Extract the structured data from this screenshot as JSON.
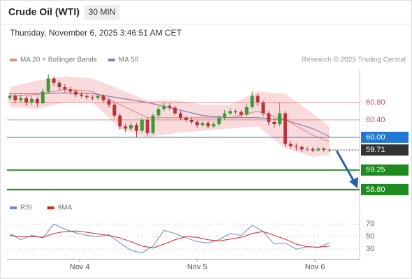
{
  "chart_data": [
    {
      "type": "candlestick",
      "title": "Crude Oil (WTI)",
      "timeframe": "30 MIN",
      "subtitle": "Thursday, November 6, 2025 3:46:51 AM CET",
      "source": "Research © 2025 Trading Central",
      "up_color": "#3a9a3a",
      "down_color": "#b8333a",
      "open": [
        60.9,
        60.95,
        60.85,
        60.9,
        60.8,
        60.88,
        60.78,
        61.05,
        61.35,
        61.25,
        61.15,
        61.1,
        61.05,
        60.98,
        60.95,
        60.92,
        60.9,
        60.95,
        60.85,
        60.75,
        60.5,
        60.25,
        60.2,
        60.28,
        60.15,
        60.4,
        60.1,
        60.5,
        60.65,
        60.72,
        60.68,
        60.55,
        60.45,
        60.4,
        60.35,
        60.28,
        60.33,
        60.25,
        60.3,
        60.45,
        60.55,
        60.6,
        60.58,
        60.52,
        60.7,
        60.95,
        60.8,
        60.55,
        60.35,
        60.3,
        60.55,
        59.85,
        59.8,
        59.78,
        59.72,
        59.73,
        59.7,
        59.74,
        59.71
      ],
      "high": [
        61.02,
        61.0,
        60.98,
        60.95,
        60.94,
        60.92,
        61.12,
        61.45,
        61.4,
        61.3,
        61.22,
        61.16,
        61.1,
        61.04,
        61.0,
        60.97,
        61.0,
        60.99,
        60.9,
        60.8,
        60.55,
        60.32,
        60.35,
        60.33,
        60.45,
        60.44,
        60.55,
        60.72,
        60.8,
        60.78,
        60.72,
        60.6,
        60.5,
        60.45,
        60.4,
        60.38,
        60.37,
        60.36,
        60.5,
        60.62,
        60.68,
        60.65,
        60.62,
        60.76,
        61.05,
        61.0,
        60.85,
        60.6,
        60.42,
        60.8,
        60.6,
        59.92,
        59.86,
        59.82,
        59.78,
        59.77,
        59.78,
        59.77,
        59.75
      ],
      "low": [
        60.84,
        60.78,
        60.8,
        60.72,
        60.74,
        60.7,
        60.75,
        61.0,
        61.18,
        61.08,
        61.04,
        60.98,
        60.92,
        60.9,
        60.87,
        60.85,
        60.86,
        60.8,
        60.68,
        60.45,
        60.18,
        60.12,
        60.15,
        60.0,
        60.1,
        60.04,
        60.06,
        60.45,
        60.6,
        60.62,
        60.5,
        60.4,
        60.35,
        60.3,
        60.22,
        60.24,
        60.2,
        60.21,
        60.26,
        60.4,
        60.5,
        60.52,
        60.46,
        60.48,
        60.66,
        60.72,
        60.48,
        60.28,
        60.22,
        60.25,
        59.78,
        59.74,
        59.7,
        59.66,
        59.67,
        59.66,
        59.67,
        59.66,
        59.67
      ],
      "close": [
        60.95,
        60.85,
        60.9,
        60.8,
        60.88,
        60.78,
        61.05,
        61.35,
        61.25,
        61.15,
        61.1,
        61.05,
        60.98,
        60.95,
        60.92,
        60.9,
        60.95,
        60.85,
        60.75,
        60.5,
        60.25,
        60.2,
        60.28,
        60.15,
        60.4,
        60.1,
        60.5,
        60.65,
        60.72,
        60.68,
        60.55,
        60.45,
        60.4,
        60.35,
        60.28,
        60.33,
        60.25,
        60.3,
        60.45,
        60.55,
        60.6,
        60.58,
        60.52,
        60.7,
        60.95,
        60.8,
        60.55,
        60.35,
        60.3,
        60.55,
        59.85,
        59.8,
        59.78,
        59.72,
        59.73,
        59.7,
        59.74,
        59.71,
        59.71
      ],
      "series": [
        {
          "name": "MA 20 + Bollinger Bands",
          "color": "#e88a8a",
          "band_color": "#f9d2d4",
          "x": [
            0.5,
            5.5,
            10.5,
            15.5,
            20.5,
            25.5,
            30.5,
            35.5,
            40.5,
            45.5,
            50.5,
            55.5,
            58.5
          ],
          "values": [
            60.95,
            60.98,
            61.1,
            61.05,
            60.75,
            60.45,
            60.45,
            60.45,
            60.45,
            60.6,
            60.4,
            60.05,
            59.9
          ],
          "upper": [
            61.15,
            61.3,
            61.4,
            61.35,
            61.1,
            60.85,
            60.85,
            60.75,
            60.75,
            61.05,
            61.0,
            60.55,
            60.25
          ],
          "lower": [
            60.7,
            60.65,
            60.8,
            60.8,
            60.2,
            60.0,
            60.1,
            60.15,
            60.2,
            60.25,
            59.75,
            59.55,
            59.6
          ]
        },
        {
          "name": "MA 50",
          "color": "#8a7fb0",
          "x": [
            0.5,
            5.5,
            10.5,
            15.5,
            20.5,
            25.5,
            30.5,
            35.5,
            40.5,
            45.5,
            50.5,
            55.5,
            58.5
          ],
          "values": [
            61.0,
            61.0,
            61.02,
            61.0,
            60.9,
            60.8,
            60.65,
            60.5,
            60.45,
            60.45,
            60.4,
            60.2,
            60.02
          ]
        }
      ],
      "levels": [
        {
          "value": 60.8,
          "label": "60.80",
          "color": "#d9534f",
          "kind": "resistance"
        },
        {
          "value": 60.4,
          "label": "60.40",
          "color": "#d9534f",
          "kind": "resistance"
        },
        {
          "value": 60,
          "label": "60.00",
          "color": "#1f78d1",
          "kind": "pivot"
        },
        {
          "value": 59.71,
          "label": "59.71",
          "color": "#333333",
          "kind": "current"
        },
        {
          "value": 59.25,
          "label": "59.25",
          "color": "#1f8a1f",
          "kind": "support"
        },
        {
          "value": 58.8,
          "label": "58.80",
          "color": "#1f8a1f",
          "kind": "support"
        }
      ],
      "xlim": [
        0,
        64
      ],
      "ylim": [
        58.59,
        61.55
      ]
    },
    {
      "type": "line",
      "series": [
        {
          "name": "RSI",
          "color": "#6b86d8",
          "values": [
            55,
            45,
            52,
            48,
            70,
            62,
            56,
            52,
            50,
            53,
            40,
            28,
            24,
            35,
            60,
            55,
            48,
            42,
            40,
            45,
            55,
            52,
            68,
            58,
            38,
            40,
            30,
            34,
            33,
            40
          ]
        },
        {
          "name": "9MA",
          "color": "#e02020",
          "values": [
            52,
            50,
            50,
            49,
            55,
            58,
            59,
            57,
            54,
            52,
            48,
            42,
            35,
            32,
            38,
            45,
            50,
            49,
            45,
            43,
            46,
            49,
            55,
            58,
            52,
            46,
            38,
            34,
            33,
            35
          ]
        }
      ],
      "x": [
        0.5,
        2.5,
        4.5,
        6.5,
        8.5,
        10.5,
        12.5,
        14.5,
        16.5,
        18.5,
        20.5,
        22.5,
        24.5,
        26.5,
        28.5,
        30.5,
        32.5,
        34.5,
        36.5,
        38.5,
        40.5,
        42.5,
        44.5,
        46.5,
        48.5,
        50.5,
        52.5,
        54.5,
        56.5,
        58.5
      ],
      "xlim": [
        0,
        64
      ],
      "ylim": [
        18,
        77
      ],
      "yticks": [
        30,
        50,
        70
      ],
      "xticks": [
        {
          "value": 13.2,
          "label": "Nov 4"
        },
        {
          "value": 34.5,
          "label": "Nov 5"
        },
        {
          "value": 55.9,
          "label": "Nov 6"
        }
      ]
    }
  ]
}
